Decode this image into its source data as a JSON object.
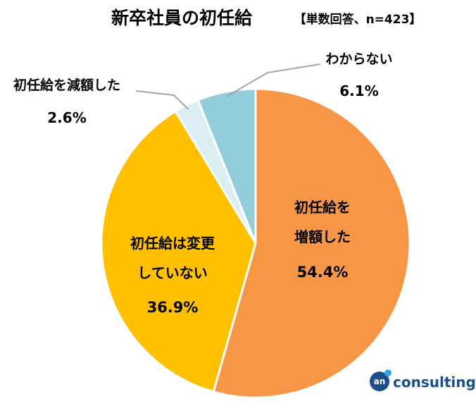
{
  "chart_data": {
    "type": "pie",
    "title": "新卒社員の初任給",
    "subtitle": "【単数回答、n=423】",
    "slices": [
      {
        "label": "初任給を増額した",
        "display_lines": [
          "初任給を",
          "増額した"
        ],
        "value": 54.4,
        "display": "54.4%",
        "color": "#F79646"
      },
      {
        "label": "初任給は変更していない",
        "display_lines": [
          "初任給は変更",
          "していない"
        ],
        "value": 36.9,
        "display": "36.9%",
        "color": "#FFC000"
      },
      {
        "label": "初任給を減額した",
        "display_lines": [
          "初任給を減額した"
        ],
        "value": 2.6,
        "display": "2.6%",
        "color": "#DAEEF3"
      },
      {
        "label": "わからない",
        "display_lines": [
          "わからない"
        ],
        "value": 6.1,
        "display": "6.1%",
        "color": "#92CDDC"
      }
    ]
  },
  "logo": {
    "mark": "an",
    "text": "consulting",
    "color": "#1A4E8C"
  }
}
